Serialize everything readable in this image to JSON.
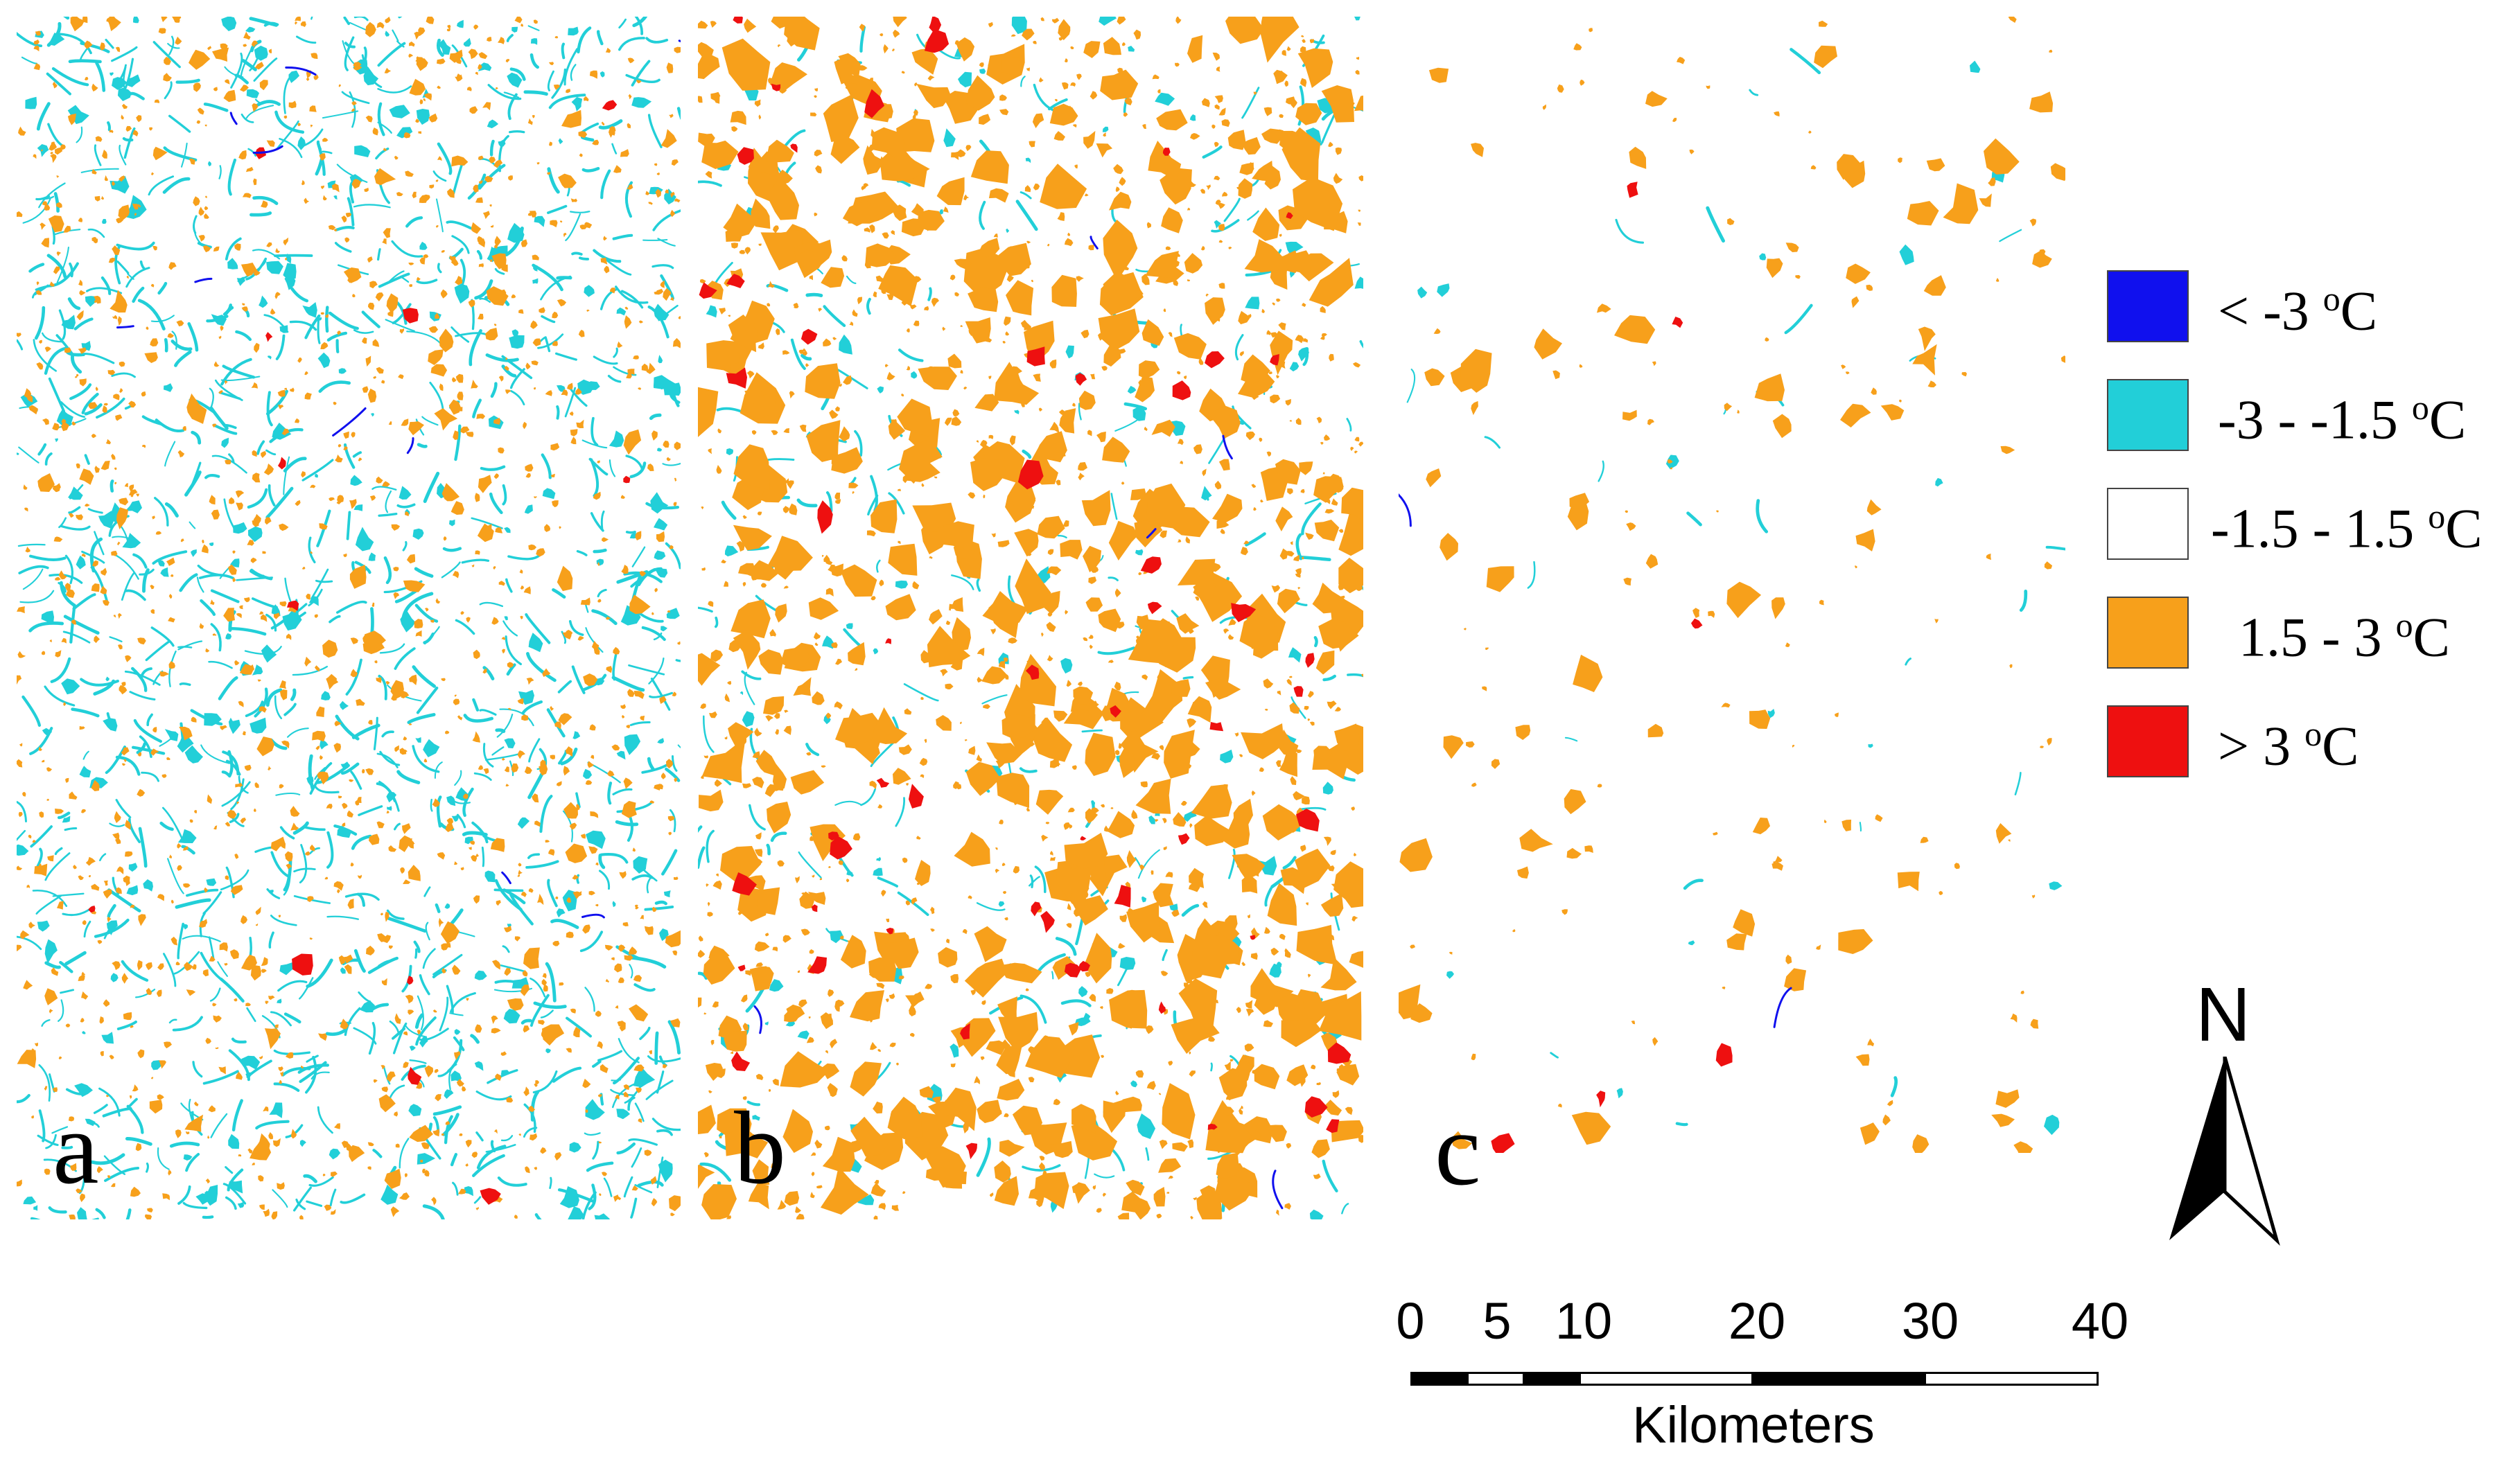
{
  "panels": [
    {
      "id": "a",
      "label": "a"
    },
    {
      "id": "b",
      "label": "b"
    },
    {
      "id": "c",
      "label": "c"
    }
  ],
  "legend": {
    "items": [
      {
        "range": "< -3 ",
        "unit_sup": "o",
        "unit": "C",
        "color": "#1010ee"
      },
      {
        "range": "-3 - -1.5 ",
        "unit_sup": "o",
        "unit": "C",
        "color": "#22cfd8"
      },
      {
        "range": "-1.5 - 1.5 ",
        "unit_sup": "o",
        "unit": "C",
        "color": "#ffffff"
      },
      {
        "range": "1.5 - 3 ",
        "unit_sup": "o",
        "unit": "C",
        "color": "#f7a01b"
      },
      {
        "range": "> 3 ",
        "unit_sup": "o",
        "unit": "C",
        "color": "#ee1010"
      }
    ]
  },
  "north_arrow": {
    "letter": "N"
  },
  "scale_bar": {
    "ticks": [
      "0",
      "5",
      "10",
      "20",
      "30",
      "40"
    ],
    "unit": "Kilometers"
  },
  "colors": {
    "orange": "#f7a01b",
    "cyan": "#22cfd8",
    "red": "#ee1010",
    "blue": "#1010ee"
  }
}
